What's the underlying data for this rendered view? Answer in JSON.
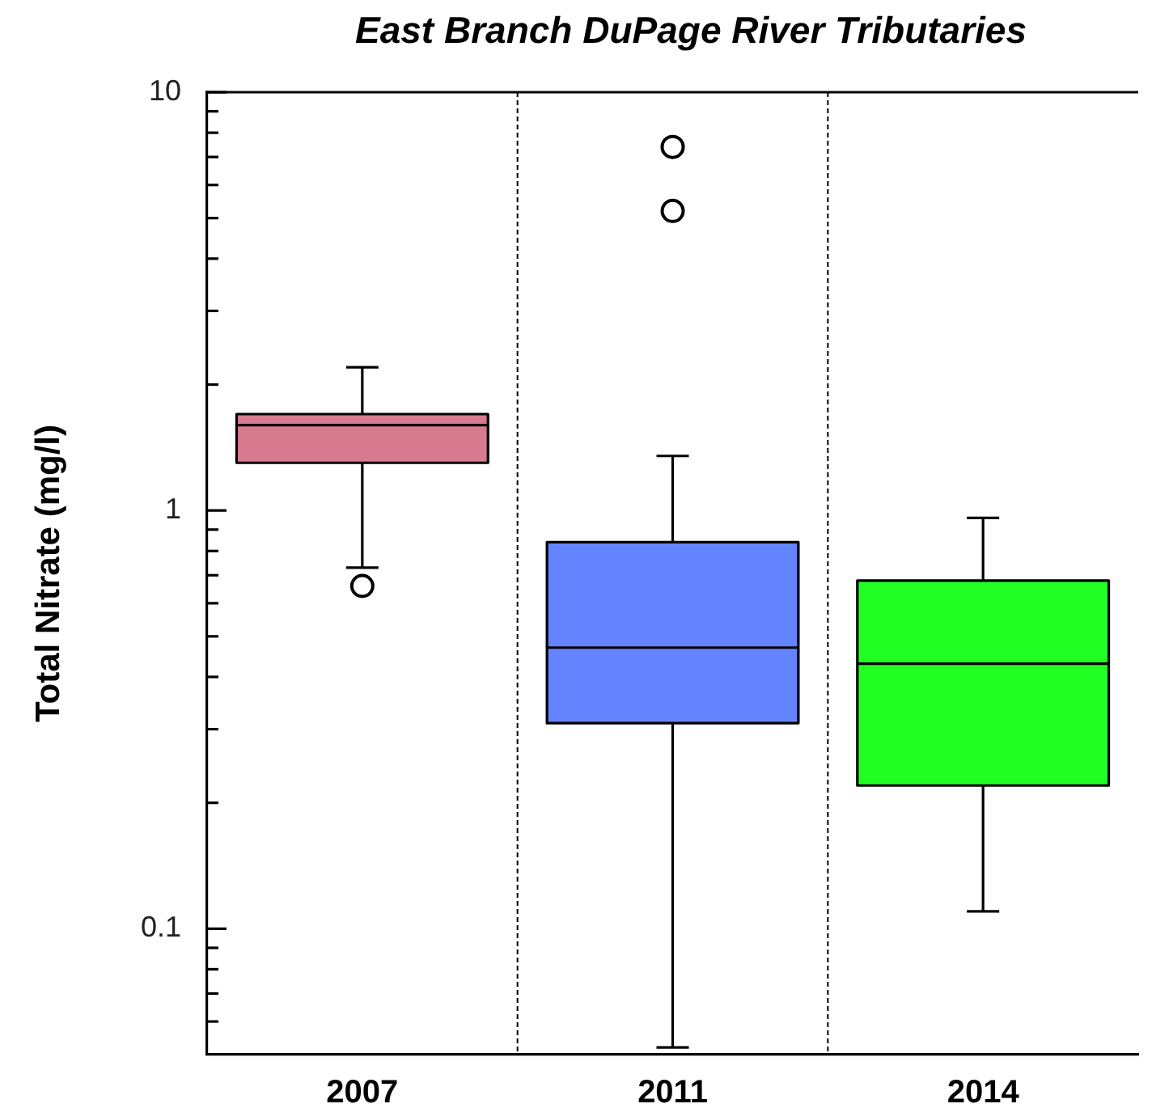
{
  "chart_data": {
    "type": "box",
    "title": "East Branch DuPage River Tributaries",
    "ylabel": "Total Nitrate (mg/l)",
    "categories": [
      "2007",
      "2011",
      "2014"
    ],
    "boxes": [
      {
        "low": 0.73,
        "q1": 1.3,
        "median": 1.6,
        "q3": 1.7,
        "high": 2.2,
        "outliers": [
          0.66
        ]
      },
      {
        "low": 0.052,
        "q1": 0.31,
        "median": 0.47,
        "q3": 0.84,
        "high": 1.35,
        "outliers": [
          5.2,
          7.4
        ]
      },
      {
        "low": 0.11,
        "q1": 0.22,
        "median": 0.43,
        "q3": 0.68,
        "high": 0.96
      }
    ],
    "colors": [
      "#d87a90",
      "#6484ff",
      "#22ff22"
    ],
    "ylim": [
      0.05,
      10
    ],
    "yticks": [
      {
        "value": 0.06,
        "label": null
      },
      {
        "value": 0.07,
        "label": null
      },
      {
        "value": 0.08,
        "label": null
      },
      {
        "value": 0.09,
        "label": null
      },
      0.1,
      {
        "value": 0.2,
        "label": null
      },
      {
        "value": 0.3,
        "label": null
      },
      {
        "value": 0.4,
        "label": null
      },
      {
        "value": 0.5,
        "label": null
      },
      {
        "value": 0.6,
        "label": null
      },
      {
        "value": 0.7,
        "label": null
      },
      {
        "value": 0.8,
        "label": null
      },
      {
        "value": 0.9,
        "label": null
      },
      1,
      {
        "value": 2,
        "label": null
      },
      {
        "value": 3,
        "label": null
      },
      {
        "value": 4,
        "label": null
      },
      {
        "value": 5,
        "label": null
      },
      {
        "value": 6,
        "label": null
      },
      {
        "value": 7,
        "label": null
      },
      {
        "value": 8,
        "label": null
      },
      {
        "value": 9,
        "label": null
      },
      10
    ],
    "log": true,
    "grid": "x",
    "marker": "circle"
  }
}
